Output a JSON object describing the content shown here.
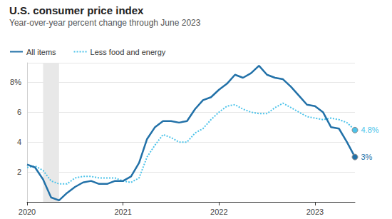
{
  "chart_data": {
    "type": "line",
    "title": "U.S. consumer price index",
    "subtitle": "Year-over-year percent change through June 2023",
    "categories": [
      "2020",
      null,
      null,
      null,
      null,
      null,
      null,
      null,
      null,
      null,
      null,
      null,
      "2021",
      null,
      null,
      null,
      null,
      null,
      null,
      null,
      null,
      null,
      null,
      null,
      "2022",
      null,
      null,
      null,
      null,
      null,
      null,
      null,
      null,
      null,
      null,
      null,
      "2023",
      null,
      null,
      null,
      null,
      null
    ],
    "series": [
      {
        "name": "All items",
        "color": "#2271a8",
        "line_style": "solid",
        "values": [
          2.5,
          2.3,
          1.5,
          0.3,
          0.1,
          0.6,
          1.0,
          1.3,
          1.4,
          1.2,
          1.2,
          1.4,
          1.4,
          1.7,
          2.6,
          4.2,
          5.0,
          5.4,
          5.4,
          5.3,
          5.4,
          6.2,
          6.8,
          7.0,
          7.5,
          7.9,
          8.5,
          8.3,
          8.6,
          9.1,
          8.5,
          8.3,
          8.2,
          7.7,
          7.1,
          6.5,
          6.4,
          6.0,
          5.0,
          4.9,
          4.0,
          3.0
        ],
        "value_labels": [
          null,
          null,
          null,
          null,
          null,
          null,
          null,
          null,
          null,
          null,
          null,
          null,
          null,
          null,
          null,
          null,
          null,
          null,
          null,
          null,
          null,
          null,
          null,
          null,
          null,
          null,
          null,
          null,
          null,
          null,
          null,
          null,
          null,
          null,
          null,
          null,
          null,
          null,
          null,
          null,
          null,
          "3%"
        ]
      },
      {
        "name": "Less food and energy",
        "color": "#4cc3ea",
        "line_style": "dotted",
        "values": [
          2.3,
          2.4,
          2.1,
          1.4,
          1.2,
          1.2,
          1.6,
          1.7,
          1.7,
          1.6,
          1.6,
          1.6,
          1.4,
          1.3,
          1.6,
          3.0,
          3.8,
          4.5,
          4.3,
          4.0,
          4.0,
          4.6,
          4.9,
          5.5,
          6.0,
          6.4,
          6.5,
          6.2,
          6.0,
          5.9,
          5.9,
          6.3,
          6.6,
          6.3,
          6.0,
          5.7,
          5.6,
          5.5,
          5.6,
          5.5,
          5.3,
          4.8
        ],
        "value_labels": [
          null,
          null,
          null,
          null,
          null,
          null,
          null,
          null,
          null,
          null,
          null,
          null,
          null,
          null,
          null,
          null,
          null,
          null,
          null,
          null,
          null,
          null,
          null,
          null,
          null,
          null,
          null,
          null,
          null,
          null,
          null,
          null,
          null,
          null,
          null,
          null,
          null,
          null,
          null,
          null,
          null,
          "4.8%"
        ]
      }
    ],
    "shaded": [
      [
        2,
        4
      ]
    ],
    "ylim": [
      0,
      9.3
    ],
    "yticks": [
      2,
      4,
      6,
      {
        "value": 8,
        "label": "8%"
      }
    ],
    "grid": true,
    "legend": "top-left"
  }
}
